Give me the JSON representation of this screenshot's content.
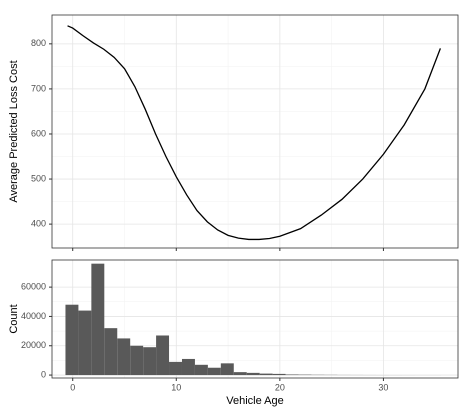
{
  "chart_data": [
    {
      "type": "line",
      "y_label": "Average Predicted Loss Cost",
      "color": "#000000",
      "grid": true,
      "x": [
        -0.5,
        0,
        1,
        2,
        3,
        4,
        5,
        6,
        7,
        8,
        9,
        10,
        11,
        12,
        13,
        14,
        15,
        16,
        17,
        18,
        19,
        20,
        22,
        24,
        26,
        28,
        30,
        32,
        34,
        35.5
      ],
      "values": [
        840,
        835,
        818,
        802,
        788,
        770,
        745,
        705,
        655,
        600,
        550,
        505,
        465,
        430,
        405,
        387,
        375,
        369,
        366,
        366,
        368,
        373,
        390,
        420,
        455,
        500,
        555,
        620,
        700,
        790
      ],
      "xlim": [
        -2.0,
        37.2
      ],
      "xticks": [
        0,
        10,
        20,
        30
      ],
      "ylim": [
        347,
        864
      ],
      "yticks": [
        400,
        500,
        600,
        700,
        800
      ]
    },
    {
      "type": "histogram",
      "x_label": "Vehicle Age",
      "y_label": "Count",
      "color": "#595959",
      "grid": true,
      "bins": [
        -0.7,
        0.55,
        1.8,
        3.05,
        4.3,
        5.55,
        6.8,
        8.05,
        9.3,
        10.55,
        11.8,
        13.05,
        14.3,
        15.55,
        16.8,
        18.05,
        19.3,
        20.55,
        21.8,
        23.05,
        24.3,
        25.55,
        26.8,
        28.05,
        29.3,
        30.55,
        31.8,
        33.05,
        34.3,
        35.55
      ],
      "values": [
        48000,
        44000,
        76000,
        32000,
        25000,
        20000,
        19000,
        27000,
        9000,
        11000,
        7000,
        5000,
        8000,
        2000,
        1500,
        1000,
        800,
        400,
        300,
        200,
        150,
        100,
        80,
        60,
        50,
        40,
        30,
        20,
        20
      ],
      "xlim": [
        -2.0,
        37.2
      ],
      "xticks": [
        0,
        10,
        20,
        30
      ],
      "ylim": [
        -2000,
        78500
      ],
      "yticks": [
        0,
        20000,
        40000,
        60000
      ]
    }
  ]
}
